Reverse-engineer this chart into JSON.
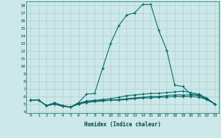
{
  "xlabel": "Humidex (Indice chaleur)",
  "background_color": "#cce8e8",
  "grid_color": "#b0cccc",
  "line_color": "#006666",
  "xlim": [
    -0.5,
    23.5
  ],
  "ylim": [
    3.8,
    18.5
  ],
  "x_ticks": [
    0,
    1,
    2,
    3,
    4,
    5,
    6,
    7,
    8,
    9,
    10,
    11,
    12,
    13,
    14,
    15,
    16,
    17,
    18,
    19,
    20,
    21,
    22,
    23
  ],
  "y_ticks": [
    4,
    5,
    6,
    7,
    8,
    9,
    10,
    11,
    12,
    13,
    14,
    15,
    16,
    17,
    18
  ],
  "curves": [
    {
      "x": [
        0,
        1,
        2,
        3,
        4,
        5,
        6,
        7,
        8,
        9,
        10,
        11,
        12,
        13,
        14,
        15,
        16,
        17,
        18,
        19,
        20,
        21,
        22,
        23
      ],
      "y": [
        5.5,
        5.5,
        4.8,
        5.2,
        4.8,
        4.6,
        5.2,
        6.3,
        6.4,
        9.7,
        13.0,
        15.3,
        16.7,
        17.0,
        18.1,
        18.1,
        14.7,
        12.1,
        7.5,
        7.3,
        6.3,
        6.2,
        5.6,
        5.0
      ]
    },
    {
      "x": [
        0,
        1,
        2,
        3,
        4,
        5,
        6,
        7,
        8,
        9,
        10,
        11,
        12,
        13,
        14,
        15,
        16,
        17,
        18,
        19,
        20,
        21,
        22,
        23
      ],
      "y": [
        5.5,
        5.5,
        4.8,
        5.0,
        4.8,
        4.6,
        5.1,
        5.4,
        5.5,
        5.6,
        5.7,
        5.9,
        6.1,
        6.2,
        6.3,
        6.4,
        6.4,
        6.5,
        6.6,
        6.7,
        6.5,
        6.3,
        5.8,
        5.0
      ]
    },
    {
      "x": [
        0,
        1,
        2,
        3,
        4,
        5,
        6,
        7,
        8,
        9,
        10,
        11,
        12,
        13,
        14,
        15,
        16,
        17,
        18,
        19,
        20,
        21,
        22,
        23
      ],
      "y": [
        5.5,
        5.5,
        4.8,
        5.0,
        4.7,
        4.6,
        5.0,
        5.3,
        5.4,
        5.5,
        5.5,
        5.6,
        5.7,
        5.8,
        5.9,
        6.0,
        6.0,
        6.1,
        6.2,
        6.2,
        6.2,
        6.1,
        5.7,
        5.0
      ]
    },
    {
      "x": [
        0,
        1,
        2,
        3,
        4,
        5,
        6,
        7,
        8,
        9,
        10,
        11,
        12,
        13,
        14,
        15,
        16,
        17,
        18,
        19,
        20,
        21,
        22,
        23
      ],
      "y": [
        5.5,
        5.5,
        4.8,
        5.0,
        4.7,
        4.6,
        5.0,
        5.2,
        5.3,
        5.4,
        5.5,
        5.5,
        5.6,
        5.7,
        5.8,
        5.8,
        5.9,
        5.9,
        6.0,
        6.0,
        6.0,
        5.9,
        5.6,
        5.0
      ]
    }
  ]
}
